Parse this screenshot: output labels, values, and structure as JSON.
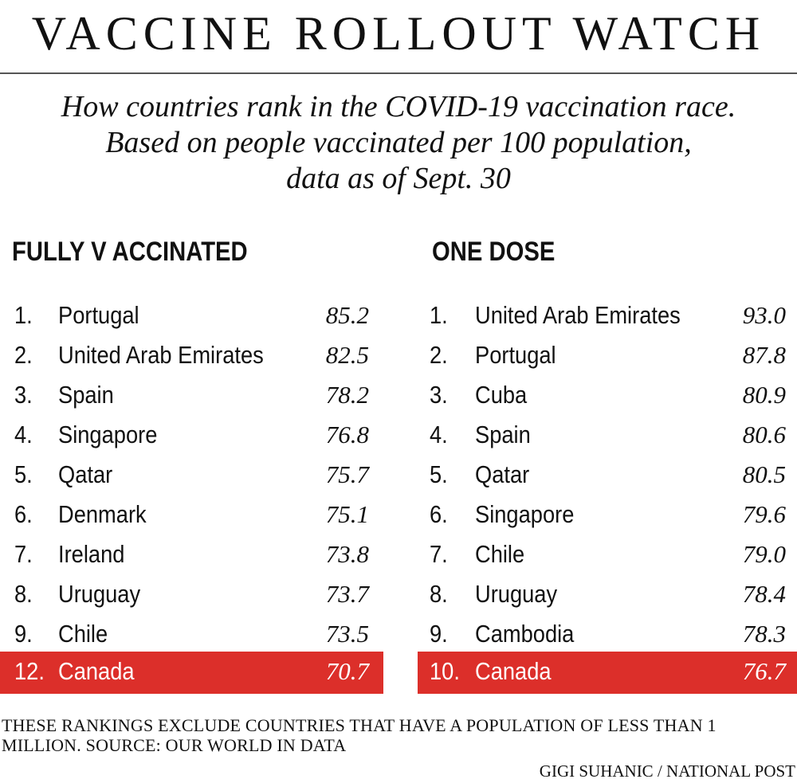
{
  "title": "VACCINE ROLLOUT WATCH",
  "subtitle": [
    "How countries rank in the COVID-19 vaccination race.",
    "Based on people vaccinated per 100 population,",
    "data as of Sept. 30"
  ],
  "footnote": "THESE RANKINGS EXCLUDE COUNTRIES THAT HAVE A POPULATION OF LESS THAN 1 MILLION. SOURCE: OUR WORLD IN DATA",
  "credit": "GIGI SUHANIC / NATIONAL POST",
  "colors": {
    "highlight": "#dc2f2a",
    "text": "#111111",
    "rule": "#555555"
  },
  "chart_data": [
    {
      "type": "table",
      "title": "FULLY V ACCINATED",
      "columns": [
        "rank",
        "country",
        "value"
      ],
      "rows": [
        {
          "rank": "1.",
          "country": "Portugal",
          "value": "85.2"
        },
        {
          "rank": "2.",
          "country": "United Arab Emirates",
          "value": "82.5"
        },
        {
          "rank": "3.",
          "country": "Spain",
          "value": "78.2"
        },
        {
          "rank": "4.",
          "country": "Singapore",
          "value": "76.8"
        },
        {
          "rank": "5.",
          "country": "Qatar",
          "value": "75.7"
        },
        {
          "rank": "6.",
          "country": "Denmark",
          "value": "75.1"
        },
        {
          "rank": "7.",
          "country": "Ireland",
          "value": "73.8"
        },
        {
          "rank": "8.",
          "country": "Uruguay",
          "value": "73.7"
        },
        {
          "rank": "9.",
          "country": "Chile",
          "value": "73.5"
        },
        {
          "rank": "12.",
          "country": "Canada",
          "value": "70.7",
          "highlight": true
        }
      ]
    },
    {
      "type": "table",
      "title": "ONE DOSE",
      "columns": [
        "rank",
        "country",
        "value"
      ],
      "rows": [
        {
          "rank": "1.",
          "country": "United Arab Emirates",
          "value": "93.0"
        },
        {
          "rank": "2.",
          "country": "Portugal",
          "value": "87.8"
        },
        {
          "rank": "3.",
          "country": "Cuba",
          "value": "80.9"
        },
        {
          "rank": "4.",
          "country": "Spain",
          "value": "80.6"
        },
        {
          "rank": "5.",
          "country": "Qatar",
          "value": "80.5"
        },
        {
          "rank": "6.",
          "country": "Singapore",
          "value": "79.6"
        },
        {
          "rank": "7.",
          "country": "Chile",
          "value": "79.0"
        },
        {
          "rank": "8.",
          "country": "Uruguay",
          "value": "78.4"
        },
        {
          "rank": "9.",
          "country": "Cambodia",
          "value": "78.3"
        },
        {
          "rank": "10.",
          "country": "Canada",
          "value": "76.7",
          "highlight": true
        }
      ]
    }
  ]
}
